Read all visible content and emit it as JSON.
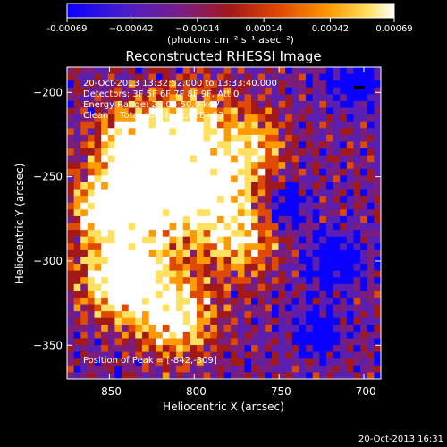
{
  "chart_data": {
    "type": "heatmap",
    "title": "Reconstructed RHESSI Image",
    "xlabel": "Heliocentric X (arcsec)",
    "ylabel": "Heliocentric Y (arcsec)",
    "xlim": [
      -875,
      -690
    ],
    "ylim": [
      -370,
      -185
    ],
    "x_ticks": [
      -850,
      -800,
      -750,
      -700
    ],
    "y_ticks": [
      -200,
      -250,
      -300,
      -350
    ],
    "x_tick_labels": [
      "-850",
      "-800",
      "-750",
      "-700"
    ],
    "y_tick_labels": [
      "−200",
      "−250",
      "−300",
      "−350"
    ],
    "colorbar": {
      "ticks": [
        -0.00069,
        -0.00042,
        -0.00014,
        0.00014,
        0.00042,
        0.00069
      ],
      "tick_labels": [
        "-0.00069",
        "−0.00042",
        "−0.00014",
        "0.00014",
        "0.00042",
        "0.00069"
      ],
      "unit_label": "(photons cm⁻² s⁻¹ asec⁻²)",
      "colormap": [
        "#0a00ff",
        "#5a1fb0",
        "#7b1d7b",
        "#a31818",
        "#e04a00",
        "#ff9a00",
        "#ffe060",
        "#ffffff"
      ]
    },
    "annotations": [
      "20-Oct-2013 13:32:52.000 to 13:33:40.000",
      "Detectors: 3F 5F 6F 7F 8F 9F, Att 0",
      "Energy Range: 25.0 - 50.0 keV",
      "Clean    Total counts: 2.02E+03"
    ],
    "peak_label": "Position of Peak = [-842,-309]",
    "peak": [
      -842,
      -309
    ],
    "timestamp": "20-Oct-2013 16:31",
    "value_range": [
      -0.00069,
      0.00069
    ]
  }
}
